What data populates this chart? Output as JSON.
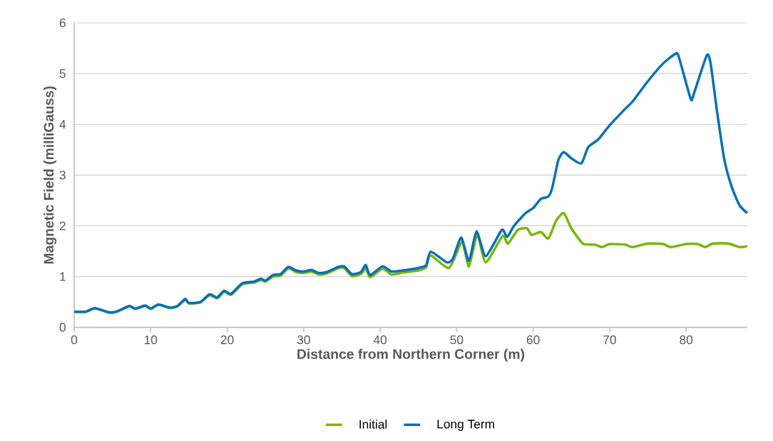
{
  "chart_data": {
    "type": "line",
    "xlabel": "Distance from Northern Corner (m)",
    "ylabel": "Magnetic Field (milliGauss)",
    "xlim": [
      0,
      88
    ],
    "xticks": [
      0,
      10,
      20,
      30,
      40,
      50,
      60,
      70,
      80
    ],
    "ylim": [
      0,
      6
    ],
    "yticks": [
      0,
      1,
      2,
      3,
      4,
      5,
      6
    ],
    "grid": "y",
    "legend": "bottom",
    "marker": "none",
    "line_style": "solid",
    "series": [
      {
        "name": "Initial",
        "color": "#77b800",
        "x": [
          0,
          1.5,
          2.7,
          4.5,
          5.5,
          7.2,
          8,
          9.3,
          10,
          11,
          12.5,
          13.5,
          14.5,
          15,
          16.5,
          17.7,
          18.7,
          19.6,
          20.5,
          22,
          23.5,
          24.4,
          25,
          26,
          27,
          28,
          29,
          30,
          31,
          32,
          33,
          34.5,
          35.3,
          36.3,
          37.5,
          38.1,
          38.7,
          40.3,
          41.5,
          43,
          45,
          46,
          46.6,
          49,
          50.7,
          51.6,
          52.7,
          53.8,
          56,
          56.7,
          58,
          59.2,
          59.8,
          61,
          62,
          63,
          64,
          65,
          66.5,
          68,
          69,
          70,
          72,
          73,
          75,
          77,
          78,
          80,
          81.5,
          82.5,
          83.5,
          85.5,
          87,
          88
        ],
        "values": [
          0.3,
          0.3,
          0.37,
          0.29,
          0.3,
          0.41,
          0.36,
          0.42,
          0.36,
          0.44,
          0.38,
          0.41,
          0.54,
          0.47,
          0.49,
          0.63,
          0.57,
          0.7,
          0.64,
          0.85,
          0.88,
          0.93,
          0.9,
          1.0,
          1.02,
          1.16,
          1.09,
          1.07,
          1.1,
          1.04,
          1.06,
          1.16,
          1.17,
          1.01,
          1.05,
          1.16,
          0.99,
          1.15,
          1.04,
          1.08,
          1.12,
          1.18,
          1.42,
          1.17,
          1.68,
          1.2,
          1.82,
          1.28,
          1.8,
          1.65,
          1.92,
          1.95,
          1.82,
          1.88,
          1.75,
          2.1,
          2.25,
          1.95,
          1.65,
          1.63,
          1.58,
          1.64,
          1.63,
          1.58,
          1.65,
          1.64,
          1.58,
          1.64,
          1.64,
          1.58,
          1.65,
          1.65,
          1.58,
          1.6
        ]
      },
      {
        "name": "Long Term",
        "color": "#0070c0",
        "x": [
          0,
          1.5,
          2.7,
          4.5,
          5.5,
          7.2,
          8,
          9.3,
          10,
          11,
          12.5,
          13.5,
          14.5,
          15,
          16.5,
          17.7,
          18.7,
          19.6,
          20.5,
          22,
          23.5,
          24.4,
          25,
          26,
          27,
          28,
          29,
          30,
          31,
          32,
          33,
          34.5,
          35.3,
          36.3,
          37.5,
          38.1,
          38.7,
          40.3,
          41.5,
          43,
          45,
          46,
          46.6,
          48.7,
          49.5,
          50.6,
          51.6,
          52.6,
          53.8,
          55.9,
          56.6,
          57.5,
          59,
          60,
          61,
          62,
          62.5,
          63.3,
          64,
          65,
          66.3,
          67.2,
          68.5,
          70,
          72,
          73,
          75,
          77,
          78.5,
          79,
          80.6,
          81,
          82.7,
          83.2,
          84,
          85,
          86,
          87,
          88
        ],
        "values": [
          0.31,
          0.31,
          0.38,
          0.3,
          0.31,
          0.42,
          0.37,
          0.43,
          0.37,
          0.45,
          0.39,
          0.42,
          0.56,
          0.48,
          0.5,
          0.65,
          0.59,
          0.72,
          0.66,
          0.87,
          0.9,
          0.96,
          0.92,
          1.03,
          1.05,
          1.19,
          1.12,
          1.1,
          1.13,
          1.07,
          1.09,
          1.19,
          1.2,
          1.05,
          1.09,
          1.23,
          1.03,
          1.2,
          1.1,
          1.12,
          1.17,
          1.22,
          1.49,
          1.28,
          1.35,
          1.77,
          1.31,
          1.89,
          1.4,
          1.92,
          1.78,
          2.0,
          2.25,
          2.35,
          2.53,
          2.58,
          2.75,
          3.3,
          3.45,
          3.33,
          3.23,
          3.55,
          3.7,
          3.98,
          4.3,
          4.45,
          4.85,
          5.2,
          5.38,
          5.35,
          4.5,
          4.6,
          5.36,
          5.2,
          4.3,
          3.3,
          2.75,
          2.4,
          2.25
        ]
      }
    ]
  }
}
